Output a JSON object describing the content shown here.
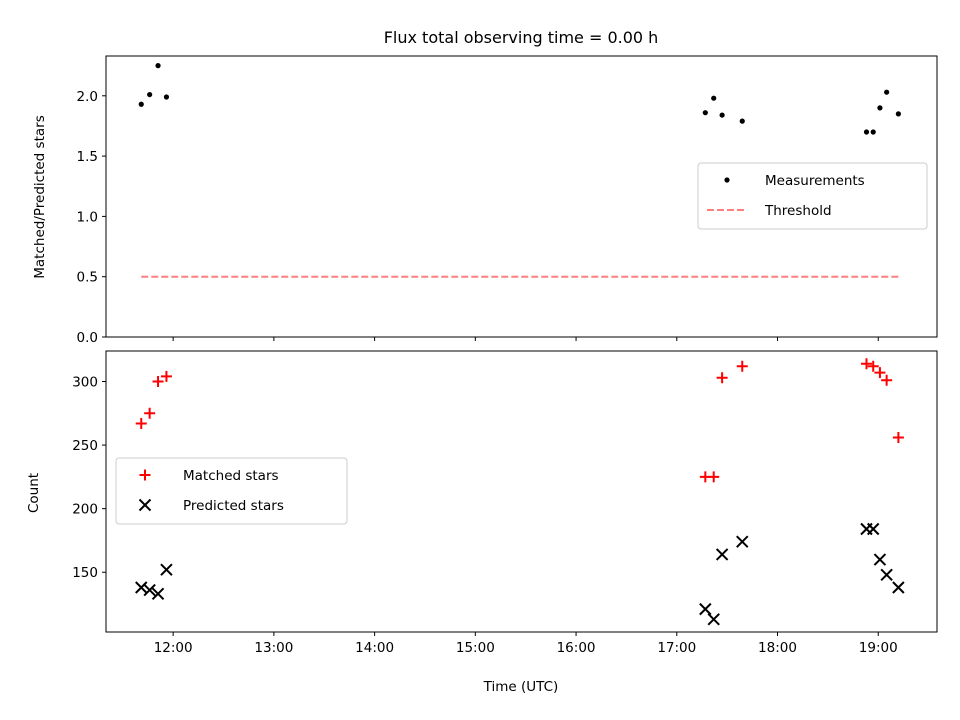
{
  "chart_data": [
    {
      "type": "scatter",
      "title": "Flux total observing time = 0.00 h",
      "xlabel": "",
      "ylabel": "Matched/Predicted stars",
      "xlim": [
        "11:20",
        "19:35"
      ],
      "ylim": [
        0,
        2.33
      ],
      "yticks": [
        0.0,
        0.5,
        1.0,
        1.5,
        2.0
      ],
      "ytick_labels": [
        "0.0",
        "0.5",
        "1.0",
        "1.5",
        "2.0"
      ],
      "legend": {
        "placement": "center-right",
        "entries": [
          "Measurements",
          "Threshold"
        ]
      },
      "grid": false,
      "series": [
        {
          "name": "Measurements",
          "marker": "dot",
          "color": "#000000",
          "points": [
            {
              "x": "11:41",
              "y": 1.93
            },
            {
              "x": "11:46",
              "y": 2.01
            },
            {
              "x": "11:51",
              "y": 2.25
            },
            {
              "x": "11:56",
              "y": 1.99
            },
            {
              "x": "17:17",
              "y": 1.86
            },
            {
              "x": "17:22",
              "y": 1.98
            },
            {
              "x": "17:27",
              "y": 1.84
            },
            {
              "x": "17:39",
              "y": 1.79
            },
            {
              "x": "18:53",
              "y": 1.7
            },
            {
              "x": "18:57",
              "y": 1.7
            },
            {
              "x": "19:01",
              "y": 1.9
            },
            {
              "x": "19:05",
              "y": 2.03
            },
            {
              "x": "19:12",
              "y": 1.85
            }
          ]
        },
        {
          "name": "Threshold",
          "line": "dashed",
          "color": "#ff7f7f",
          "points": [
            {
              "x": "11:41",
              "y": 0.5
            },
            {
              "x": "19:12",
              "y": 0.5
            }
          ]
        }
      ]
    },
    {
      "type": "scatter",
      "title": "",
      "xlabel": "Time (UTC)",
      "ylabel": "Count",
      "xlim": [
        "11:20",
        "19:35"
      ],
      "ylim": [
        103,
        324
      ],
      "yticks": [
        150,
        200,
        250,
        300
      ],
      "ytick_labels": [
        "150",
        "200",
        "250",
        "300"
      ],
      "xticks": [
        "12:00",
        "13:00",
        "14:00",
        "15:00",
        "16:00",
        "17:00",
        "18:00",
        "19:00"
      ],
      "legend": {
        "placement": "center-left",
        "entries": [
          "Matched stars",
          "Predicted stars"
        ]
      },
      "grid": false,
      "series": [
        {
          "name": "Matched stars",
          "marker": "plus",
          "color": "#ff0000",
          "points": [
            {
              "x": "11:41",
              "y": 267
            },
            {
              "x": "11:46",
              "y": 275
            },
            {
              "x": "11:51",
              "y": 300
            },
            {
              "x": "11:56",
              "y": 304
            },
            {
              "x": "17:17",
              "y": 225
            },
            {
              "x": "17:22",
              "y": 225
            },
            {
              "x": "17:27",
              "y": 303
            },
            {
              "x": "17:39",
              "y": 312
            },
            {
              "x": "18:53",
              "y": 314
            },
            {
              "x": "18:57",
              "y": 312
            },
            {
              "x": "19:01",
              "y": 307
            },
            {
              "x": "19:05",
              "y": 301
            },
            {
              "x": "19:12",
              "y": 256
            }
          ]
        },
        {
          "name": "Predicted stars",
          "marker": "x",
          "color": "#000000",
          "points": [
            {
              "x": "11:41",
              "y": 138
            },
            {
              "x": "11:46",
              "y": 136
            },
            {
              "x": "11:51",
              "y": 133
            },
            {
              "x": "11:56",
              "y": 152
            },
            {
              "x": "17:17",
              "y": 121
            },
            {
              "x": "17:22",
              "y": 113
            },
            {
              "x": "17:27",
              "y": 164
            },
            {
              "x": "17:39",
              "y": 174
            },
            {
              "x": "18:53",
              "y": 184
            },
            {
              "x": "18:57",
              "y": 184
            },
            {
              "x": "19:01",
              "y": 160
            },
            {
              "x": "19:05",
              "y": 148
            },
            {
              "x": "19:12",
              "y": 138
            }
          ]
        }
      ]
    }
  ]
}
